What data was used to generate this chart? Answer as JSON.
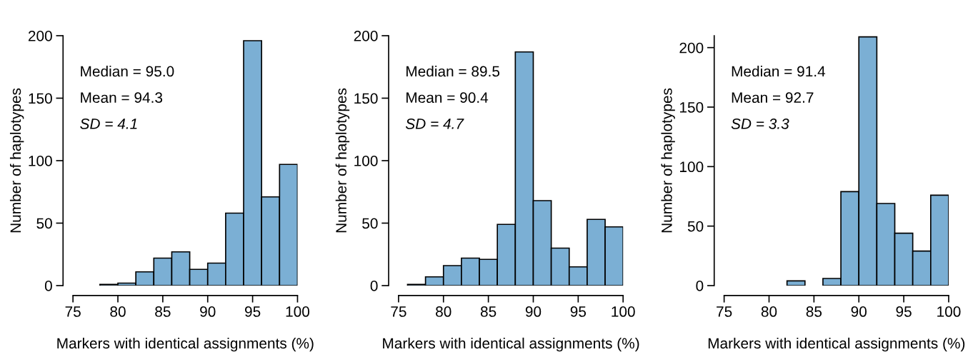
{
  "chart_data": [
    {
      "type": "histogram",
      "xlabel": "Markers with identical assignments (%)",
      "ylabel": "Number of haplotypes",
      "bins": [
        78,
        80,
        82,
        84,
        86,
        88,
        90,
        92,
        94,
        96,
        98,
        100
      ],
      "values": [
        1,
        2,
        11,
        22,
        27,
        13,
        18,
        58,
        196,
        71,
        97
      ],
      "color": "#7bafd4",
      "xlim": [
        75,
        100
      ],
      "ylim": [
        0,
        200
      ],
      "xticks": [
        75,
        80,
        85,
        90,
        95,
        100
      ],
      "yticks": [
        0,
        50,
        100,
        150,
        200
      ],
      "annotations": [
        "Median = 95.0",
        "Mean = 94.3",
        "SD = 4.1"
      ]
    },
    {
      "type": "histogram",
      "xlabel": "Markers with identical assignments (%)",
      "ylabel": "Number of haplotypes",
      "bins": [
        76,
        78,
        80,
        82,
        84,
        86,
        88,
        90,
        92,
        94,
        96,
        98,
        100
      ],
      "values": [
        1,
        7,
        16,
        22,
        21,
        49,
        187,
        68,
        30,
        15,
        53,
        47
      ],
      "color": "#7bafd4",
      "xlim": [
        75,
        100
      ],
      "ylim": [
        0,
        200
      ],
      "xticks": [
        75,
        80,
        85,
        90,
        95,
        100
      ],
      "yticks": [
        0,
        50,
        100,
        150,
        200
      ],
      "annotations": [
        "Median = 89.5",
        "Mean = 90.4",
        "SD = 4.7"
      ]
    },
    {
      "type": "histogram",
      "xlabel": "Markers with identical assignments (%)",
      "ylabel": "Number of haplotypes",
      "bins": [
        82,
        84,
        86,
        88,
        90,
        92,
        94,
        96,
        98,
        100
      ],
      "values": [
        4,
        0,
        6,
        79,
        209,
        69,
        44,
        29,
        76
      ],
      "color": "#7bafd4",
      "xlim": [
        75,
        100
      ],
      "ylim": [
        0,
        210
      ],
      "xticks": [
        75,
        80,
        85,
        90,
        95,
        100
      ],
      "yticks": [
        0,
        50,
        100,
        150,
        200
      ],
      "annotations": [
        "Median = 91.4",
        "Mean = 92.7",
        "SD = 3.3"
      ]
    }
  ]
}
